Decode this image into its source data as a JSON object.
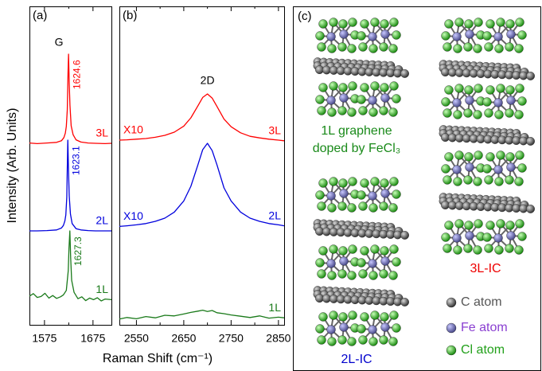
{
  "figure": {
    "y_label": "Intensity (Arb. Units)",
    "x_label": "Raman Shift (cm⁻¹)"
  },
  "chart_data": [
    {
      "type": "line",
      "panel_label": "(a)",
      "peak_name": "G",
      "xlim": [
        1544,
        1713
      ],
      "xticks": [
        1575,
        1675
      ],
      "xminorticks": [
        1625
      ],
      "ylim": [
        0,
        100
      ],
      "series": [
        {
          "name": "3L",
          "color": "#ff0000",
          "peak": 1624.6,
          "x": [
            1544,
            1560,
            1580,
            1600,
            1610,
            1615,
            1618,
            1620,
            1622,
            1623.5,
            1624.6,
            1626,
            1627.5,
            1630,
            1634,
            1640,
            1650,
            1665,
            1680,
            1700,
            1713
          ],
          "values": [
            57.1,
            56.9,
            57.1,
            57.3,
            57.8,
            58.8,
            60.2,
            62.3,
            67.5,
            79,
            85,
            76,
            69,
            62.5,
            59.7,
            58.1,
            57.4,
            57.1,
            57,
            56.9,
            57
          ]
        },
        {
          "name": "2L",
          "color": "#0000dd",
          "peak": 1623.1,
          "x": [
            1544,
            1560,
            1580,
            1600,
            1610,
            1614,
            1617,
            1619,
            1621,
            1622,
            1623.1,
            1624.5,
            1626,
            1628.5,
            1632,
            1640,
            1650,
            1665,
            1680,
            1700,
            1713
          ],
          "values": [
            29.5,
            29.5,
            29.6,
            29.8,
            30.4,
            31.2,
            32.6,
            34.5,
            40.1,
            49.2,
            58,
            48.5,
            40.5,
            34.8,
            31.8,
            30.2,
            29.8,
            29.6,
            29.5,
            29.5,
            29.5
          ]
        },
        {
          "name": "1L",
          "color": "#1a7a1a",
          "peak": 1627.3,
          "x": [
            1544,
            1552,
            1560,
            1568,
            1576,
            1584,
            1592,
            1600,
            1608,
            1614,
            1620,
            1624,
            1625.5,
            1627.3,
            1629,
            1631,
            1636,
            1644,
            1652,
            1660,
            1668,
            1676,
            1684,
            1692,
            1700,
            1713
          ],
          "values": [
            9,
            9.8,
            8.6,
            8.9,
            9.9,
            8.4,
            9.2,
            8.3,
            8.8,
            9.4,
            10.8,
            17,
            24,
            29.5,
            21,
            14,
            10.2,
            8.2,
            8.8,
            7.6,
            8.4,
            7.9,
            8.5,
            7.5,
            8.1,
            7.9
          ]
        }
      ]
    },
    {
      "type": "line",
      "panel_label": "(b)",
      "peak_name": "2D",
      "xlim": [
        2514,
        2862
      ],
      "xticks": [
        2550,
        2650,
        2750,
        2850
      ],
      "xminorticks": [
        2600,
        2700,
        2800
      ],
      "ylim": [
        0,
        100
      ],
      "series": [
        {
          "name": "3L",
          "color": "#ff0000",
          "scale_label": "X10",
          "x": [
            2514,
            2530,
            2550,
            2570,
            2590,
            2610,
            2630,
            2650,
            2665,
            2680,
            2690,
            2700,
            2710,
            2720,
            2735,
            2750,
            2770,
            2790,
            2810,
            2830,
            2850,
            2862
          ],
          "values": [
            58,
            58.1,
            58.3,
            58.5,
            58.9,
            59.5,
            60.5,
            62.4,
            65,
            68.8,
            71.4,
            72.5,
            71.2,
            68.6,
            64.6,
            62.2,
            60.3,
            59.2,
            58.7,
            58.3,
            58,
            57.8
          ]
        },
        {
          "name": "2L",
          "color": "#0000dd",
          "scale_label": "X10",
          "x": [
            2514,
            2530,
            2550,
            2570,
            2590,
            2610,
            2630,
            2650,
            2665,
            2680,
            2690,
            2700,
            2710,
            2720,
            2735,
            2750,
            2770,
            2790,
            2810,
            2830,
            2850,
            2862
          ],
          "values": [
            30.9,
            31.1,
            31.4,
            31.8,
            32.5,
            33.5,
            35.4,
            38.9,
            43.5,
            50.3,
            55,
            57,
            54.7,
            50.3,
            43,
            38.9,
            35.4,
            33.5,
            32.5,
            31.8,
            31.4,
            31.1
          ]
        },
        {
          "name": "1L",
          "color": "#1a7a1a",
          "x": [
            2514,
            2530,
            2550,
            2570,
            2590,
            2610,
            2630,
            2650,
            2665,
            2680,
            2690,
            2700,
            2710,
            2720,
            2735,
            2750,
            2770,
            2790,
            2810,
            2830,
            2850,
            2862
          ],
          "values": [
            1.8,
            2.3,
            1.9,
            2.6,
            2.2,
            3,
            2.8,
            3.4,
            3.9,
            4.3,
            4.6,
            4.2,
            4.5,
            3.8,
            3.5,
            3.1,
            2.7,
            2.3,
            2.8,
            2.1,
            2.4,
            2.2
          ]
        }
      ]
    }
  ],
  "diagram": {
    "panel_label": "(c)",
    "caption_1l": [
      "1L graphene",
      "doped by FeCl₃"
    ],
    "label_2l": "2L-IC",
    "label_3l": "3L-IC",
    "legend": [
      "C atom",
      "Fe atom",
      "Cl atom"
    ]
  }
}
